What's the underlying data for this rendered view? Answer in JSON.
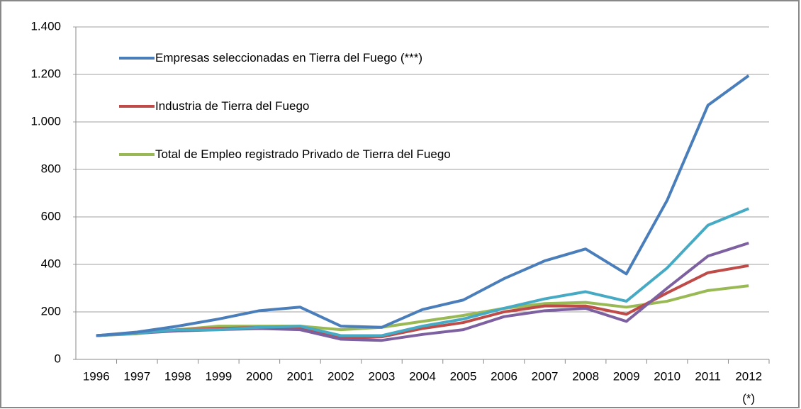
{
  "chart_data": {
    "type": "line",
    "categories": [
      "1996",
      "1997",
      "1998",
      "1999",
      "2000",
      "2001",
      "2002",
      "2003",
      "2004",
      "2005",
      "2006",
      "2007",
      "2008",
      "2009",
      "2010",
      "2011",
      "2012"
    ],
    "note": "(*)",
    "series": [
      {
        "name": "Empresas seleccionadas en Tierra del Fuego (***)",
        "color": "#4a7ebb",
        "values": [
          100,
          115,
          140,
          170,
          205,
          220,
          140,
          135,
          210,
          250,
          340,
          415,
          465,
          360,
          670,
          1070,
          1195
        ]
      },
      {
        "name": "Industria de Tierra del Fuego",
        "color": "#be4b48",
        "values": [
          100,
          112,
          125,
          130,
          135,
          130,
          90,
          95,
          130,
          155,
          200,
          225,
          225,
          190,
          280,
          365,
          395
        ]
      },
      {
        "name": "Total de Empleo registrado Privado de Tierra del Fuego",
        "color": "#98b954",
        "values": [
          100,
          108,
          125,
          140,
          140,
          140,
          125,
          135,
          160,
          185,
          215,
          235,
          240,
          220,
          245,
          290,
          310
        ]
      },
      {
        "color": "#46aac5",
        "values": [
          100,
          110,
          125,
          125,
          135,
          140,
          100,
          100,
          140,
          170,
          215,
          255,
          285,
          245,
          385,
          565,
          635
        ]
      },
      {
        "color": "#7d60a0",
        "values": [
          100,
          110,
          120,
          125,
          130,
          125,
          85,
          80,
          105,
          125,
          180,
          205,
          215,
          160,
          300,
          435,
          490
        ]
      }
    ],
    "ylim": [
      0,
      1400
    ],
    "yticks": [
      0,
      200,
      400,
      600,
      800,
      {
        "value": 1000,
        "label": "1.000"
      },
      {
        "value": 1200,
        "label": "1.200"
      },
      {
        "value": 1400,
        "label": "1.400"
      }
    ],
    "grid": true
  }
}
